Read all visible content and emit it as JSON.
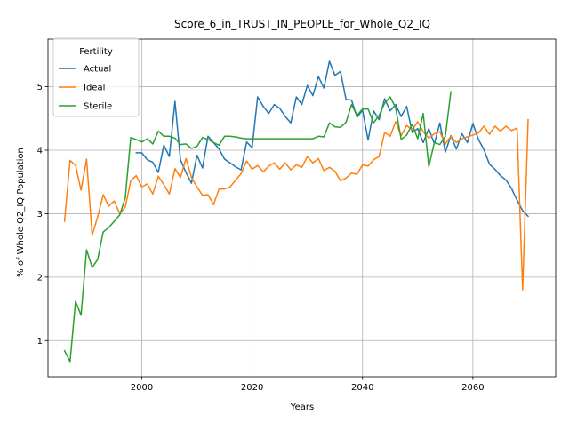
{
  "chart_data": {
    "type": "line",
    "title": "Score_6_in_TRUST_IN_PEOPLE_for_Whole_Q2_IQ",
    "xlabel": "Years",
    "ylabel": "% of Whole Q2_IQ Population",
    "xlim": [
      1983,
      2075
    ],
    "ylim": [
      0.43,
      5.75
    ],
    "xticks": [
      2000,
      2020,
      2040,
      2060
    ],
    "yticks": [
      1,
      2,
      3,
      4,
      5
    ],
    "grid": true,
    "legend": {
      "title": "Fertility",
      "position": "top-left"
    },
    "series": [
      {
        "name": "Actual",
        "color": "#1f77b4",
        "x": [
          1999,
          2000,
          2001,
          2002,
          2003,
          2004,
          2005,
          2006,
          2007,
          2008,
          2009,
          2010,
          2011,
          2012,
          2013,
          2014,
          2015,
          2016,
          2017,
          2018,
          2019,
          2020,
          2021,
          2022,
          2023,
          2024,
          2025,
          2026,
          2027,
          2028,
          2029,
          2030,
          2031,
          2032,
          2033,
          2034,
          2035,
          2036,
          2037,
          2038,
          2039,
          2040,
          2041,
          2042,
          2043,
          2044,
          2045,
          2046,
          2047,
          2048,
          2049,
          2050,
          2051,
          2052,
          2053,
          2054,
          2055,
          2056,
          2057,
          2058,
          2059,
          2060,
          2061,
          2062,
          2063,
          2064,
          2065,
          2066,
          2067,
          2068,
          2069,
          2070
        ],
        "values": [
          3.96,
          3.96,
          3.85,
          3.81,
          3.65,
          4.08,
          3.9,
          4.77,
          3.85,
          3.65,
          3.48,
          3.92,
          3.72,
          4.22,
          4.12,
          4.02,
          3.86,
          3.8,
          3.74,
          3.69,
          4.13,
          4.04,
          4.84,
          4.69,
          4.58,
          4.72,
          4.66,
          4.53,
          4.43,
          4.84,
          4.72,
          5.02,
          4.86,
          5.16,
          4.98,
          5.4,
          5.18,
          5.24,
          4.8,
          4.79,
          4.52,
          4.63,
          4.16,
          4.62,
          4.48,
          4.81,
          4.62,
          4.72,
          4.53,
          4.69,
          4.28,
          4.34,
          4.12,
          4.34,
          4.1,
          4.43,
          3.97,
          4.23,
          4.02,
          4.26,
          4.12,
          4.42,
          4.17,
          4.01,
          3.78,
          3.7,
          3.6,
          3.53,
          3.4,
          3.21,
          3.05,
          2.96
        ]
      },
      {
        "name": "Ideal",
        "color": "#ff7f0e",
        "x": [
          1986,
          1987,
          1988,
          1989,
          1990,
          1991,
          1992,
          1993,
          1994,
          1995,
          1996,
          1997,
          1998,
          1999,
          2000,
          2001,
          2002,
          2003,
          2004,
          2005,
          2006,
          2007,
          2008,
          2009,
          2010,
          2011,
          2012,
          2013,
          2014,
          2015,
          2016,
          2017,
          2018,
          2019,
          2020,
          2021,
          2022,
          2023,
          2024,
          2025,
          2026,
          2027,
          2028,
          2029,
          2030,
          2031,
          2032,
          2033,
          2034,
          2035,
          2036,
          2037,
          2038,
          2039,
          2040,
          2041,
          2042,
          2043,
          2044,
          2045,
          2046,
          2047,
          2048,
          2049,
          2050,
          2051,
          2052,
          2053,
          2054,
          2055,
          2056,
          2057,
          2058,
          2059,
          2060,
          2061,
          2062,
          2063,
          2064,
          2065,
          2066,
          2067,
          2068,
          2069,
          2070
        ],
        "values": [
          2.88,
          3.84,
          3.76,
          3.37,
          3.86,
          2.66,
          2.95,
          3.3,
          3.12,
          3.2,
          3.0,
          3.1,
          3.52,
          3.6,
          3.42,
          3.47,
          3.31,
          3.59,
          3.46,
          3.31,
          3.71,
          3.57,
          3.87,
          3.57,
          3.42,
          3.29,
          3.3,
          3.14,
          3.39,
          3.39,
          3.42,
          3.53,
          3.63,
          3.83,
          3.7,
          3.76,
          3.66,
          3.75,
          3.8,
          3.7,
          3.8,
          3.69,
          3.77,
          3.73,
          3.9,
          3.8,
          3.87,
          3.68,
          3.73,
          3.67,
          3.52,
          3.56,
          3.64,
          3.62,
          3.77,
          3.75,
          3.85,
          3.9,
          4.28,
          4.22,
          4.45,
          4.23,
          4.39,
          4.32,
          4.45,
          4.29,
          4.19,
          4.26,
          4.29,
          4.1,
          4.22,
          4.12,
          4.18,
          4.21,
          4.24,
          4.27,
          4.38,
          4.25,
          4.38,
          4.3,
          4.38,
          4.31,
          4.35,
          1.8,
          4.48
        ]
      },
      {
        "name": "Sterile",
        "color": "#2ca02c",
        "x": [
          1986,
          1987,
          1988,
          1989,
          1990,
          1991,
          1992,
          1993,
          1994,
          1995,
          1996,
          1997,
          1998,
          1999,
          2000,
          2001,
          2002,
          2003,
          2004,
          2005,
          2006,
          2007,
          2008,
          2009,
          2010,
          2011,
          2012,
          2013,
          2014,
          2015,
          2016,
          2017,
          2018,
          2019,
          2020,
          2021,
          2022,
          2023,
          2024,
          2025,
          2026,
          2027,
          2028,
          2029,
          2030,
          2031,
          2032,
          2033,
          2034,
          2035,
          2036,
          2037,
          2038,
          2039,
          2040,
          2041,
          2042,
          2043,
          2044,
          2045,
          2046,
          2047,
          2048,
          2049,
          2050,
          2051,
          2052,
          2053,
          2054,
          2055,
          2056
        ],
        "values": [
          0.84,
          0.67,
          1.62,
          1.4,
          2.43,
          2.15,
          2.28,
          2.71,
          2.78,
          2.88,
          2.98,
          3.25,
          4.2,
          4.17,
          4.13,
          4.18,
          4.1,
          4.3,
          4.22,
          4.22,
          4.19,
          4.09,
          4.1,
          4.03,
          4.06,
          4.2,
          4.17,
          4.12,
          4.08,
          4.22,
          4.22,
          4.21,
          4.19,
          4.18,
          4.18,
          4.18,
          4.18,
          4.18,
          4.18,
          4.18,
          4.18,
          4.18,
          4.18,
          4.18,
          4.18,
          4.18,
          4.22,
          4.21,
          4.43,
          4.37,
          4.36,
          4.44,
          4.72,
          4.55,
          4.65,
          4.65,
          4.43,
          4.55,
          4.74,
          4.84,
          4.67,
          4.17,
          4.24,
          4.41,
          4.18,
          4.58,
          3.74,
          4.12,
          4.09,
          4.22,
          4.92
        ]
      }
    ]
  }
}
